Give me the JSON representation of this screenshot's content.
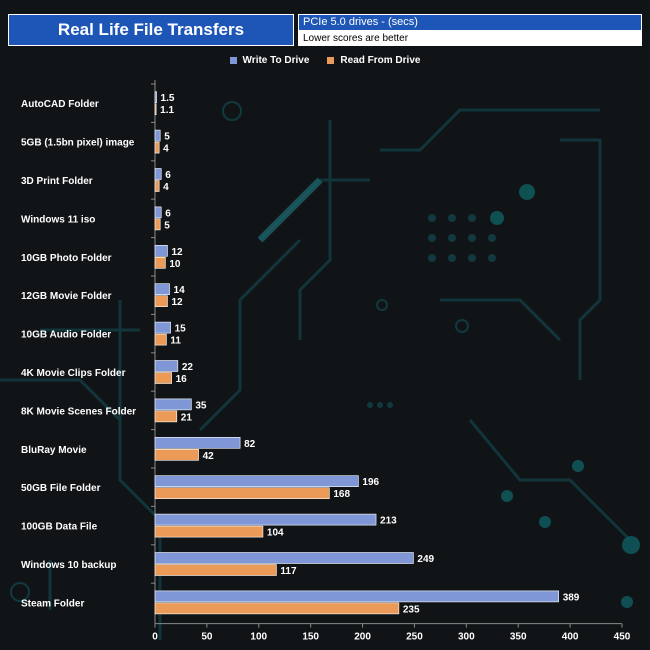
{
  "header": {
    "title": "Real Life File Transfers",
    "subtitle": "PCIe 5.0 drives - (secs)",
    "note": "Lower scores are better"
  },
  "colors": {
    "write": "#7f97d6",
    "read": "#eb9a57",
    "header_bg": "#1e56b8",
    "background": "#111416",
    "circuit": "#11393f"
  },
  "chart_data": {
    "type": "bar",
    "orientation": "horizontal",
    "title": "Real Life File Transfers",
    "subtitle": "PCIe 5.0 drives - (secs)",
    "note": "Lower scores are better",
    "xlabel": "",
    "ylabel": "",
    "xlim": [
      0,
      450
    ],
    "xticks": [
      0,
      50,
      100,
      150,
      200,
      250,
      300,
      350,
      400,
      450
    ],
    "legend_position": "top-center",
    "categories": [
      "AutoCAD Folder",
      "5GB (1.5bn pixel) image",
      "3D Print Folder",
      "Windows 11 iso",
      "10GB Photo Folder",
      "12GB Movie Folder",
      "10GB Audio Folder",
      "4K Movie Clips Folder",
      "8K Movie Scenes Folder",
      "BluRay Movie",
      "50GB File Folder",
      "100GB Data File",
      "Windows 10 backup",
      "Steam Folder"
    ],
    "series": [
      {
        "name": "Write To  Drive",
        "values": [
          1.5,
          5,
          6,
          6,
          12,
          14,
          15,
          22,
          35,
          82,
          196,
          213,
          249,
          389
        ]
      },
      {
        "name": "Read From  Drive",
        "values": [
          1.1,
          4,
          4,
          5,
          10,
          12,
          11,
          16,
          21,
          42,
          168,
          104,
          117,
          235
        ]
      }
    ]
  }
}
